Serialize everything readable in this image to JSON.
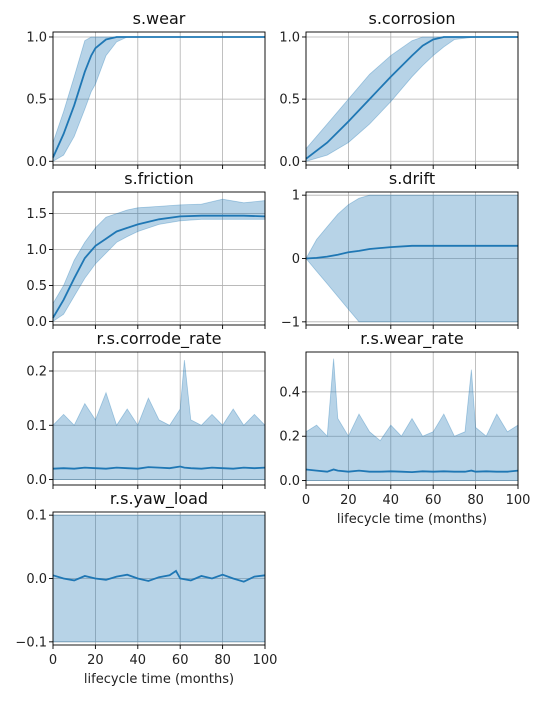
{
  "colors": {
    "line": "#1f77b4",
    "band": "#1f77b4",
    "grid": "#b0b0b0",
    "spine": "#000000"
  },
  "chart_data": [
    {
      "type": "line",
      "title": "s.wear",
      "xlabel": "",
      "xlim": [
        0,
        100
      ],
      "ylim": [
        -0.03,
        1.04
      ],
      "xticks": [
        0,
        20,
        40,
        60,
        80,
        100
      ],
      "xtick_labels_shown": false,
      "yticks": [
        0.0,
        0.5,
        1.0
      ],
      "ytick_labels": [
        "0.0",
        "0.5",
        "1.0"
      ],
      "x": [
        0,
        5,
        10,
        15,
        18,
        20,
        25,
        30,
        35,
        40,
        50,
        60,
        70,
        80,
        90,
        100
      ],
      "mean": [
        0.03,
        0.22,
        0.45,
        0.72,
        0.85,
        0.91,
        0.98,
        1.0,
        1.0,
        1.0,
        1.0,
        1.0,
        1.0,
        1.0,
        1.0,
        1.0
      ],
      "lower": [
        0.0,
        0.05,
        0.2,
        0.42,
        0.56,
        0.62,
        0.85,
        0.96,
        1.0,
        1.0,
        1.0,
        1.0,
        1.0,
        1.0,
        1.0,
        1.0
      ],
      "upper": [
        0.15,
        0.4,
        0.68,
        0.97,
        1.0,
        1.0,
        1.0,
        1.0,
        1.0,
        1.0,
        1.0,
        1.0,
        1.0,
        1.0,
        1.0,
        1.0
      ]
    },
    {
      "type": "line",
      "title": "s.corrosion",
      "xlabel": "",
      "xlim": [
        0,
        100
      ],
      "ylim": [
        -0.03,
        1.04
      ],
      "xticks": [
        0,
        20,
        40,
        60,
        80,
        100
      ],
      "xtick_labels_shown": false,
      "yticks": [
        0.0,
        0.5,
        1.0
      ],
      "ytick_labels": [
        "0.0",
        "0.5",
        "1.0"
      ],
      "x": [
        0,
        10,
        20,
        30,
        40,
        50,
        55,
        60,
        65,
        70,
        80,
        90,
        100
      ],
      "mean": [
        0.02,
        0.15,
        0.32,
        0.5,
        0.68,
        0.85,
        0.93,
        0.98,
        1.0,
        1.0,
        1.0,
        1.0,
        1.0
      ],
      "lower": [
        0.0,
        0.05,
        0.15,
        0.3,
        0.48,
        0.68,
        0.77,
        0.85,
        0.92,
        0.98,
        1.0,
        1.0,
        1.0
      ],
      "upper": [
        0.1,
        0.3,
        0.5,
        0.7,
        0.85,
        0.97,
        1.0,
        1.0,
        1.0,
        1.0,
        1.0,
        1.0,
        1.0
      ]
    },
    {
      "type": "line",
      "title": "s.friction",
      "xlabel": "",
      "xlim": [
        0,
        100
      ],
      "ylim": [
        -0.05,
        1.8
      ],
      "xticks": [
        0,
        20,
        40,
        60,
        80,
        100
      ],
      "xtick_labels_shown": false,
      "yticks": [
        0.0,
        0.5,
        1.0,
        1.5
      ],
      "ytick_labels": [
        "0.0",
        "0.5",
        "1.0",
        "1.5"
      ],
      "x": [
        0,
        5,
        10,
        15,
        20,
        25,
        30,
        35,
        40,
        50,
        60,
        70,
        80,
        90,
        100
      ],
      "mean": [
        0.05,
        0.3,
        0.6,
        0.88,
        1.05,
        1.15,
        1.25,
        1.3,
        1.35,
        1.42,
        1.46,
        1.47,
        1.47,
        1.47,
        1.46
      ],
      "lower": [
        0.0,
        0.1,
        0.35,
        0.6,
        0.8,
        0.95,
        1.1,
        1.18,
        1.25,
        1.35,
        1.4,
        1.42,
        1.42,
        1.42,
        1.42
      ],
      "upper": [
        0.25,
        0.5,
        0.85,
        1.1,
        1.3,
        1.45,
        1.5,
        1.55,
        1.58,
        1.6,
        1.62,
        1.63,
        1.7,
        1.65,
        1.68
      ]
    },
    {
      "type": "line",
      "title": "s.drift",
      "xlabel": "",
      "xlim": [
        0,
        100
      ],
      "ylim": [
        -1.05,
        1.05
      ],
      "xticks": [
        0,
        20,
        40,
        60,
        80,
        100
      ],
      "xtick_labels_shown": false,
      "yticks": [
        -1,
        0,
        1
      ],
      "ytick_labels": [
        "−1",
        "0",
        "1"
      ],
      "x": [
        0,
        5,
        10,
        15,
        20,
        25,
        30,
        40,
        50,
        60,
        70,
        80,
        90,
        100
      ],
      "mean": [
        0.0,
        0.01,
        0.03,
        0.06,
        0.1,
        0.12,
        0.15,
        0.18,
        0.2,
        0.2,
        0.2,
        0.2,
        0.2,
        0.2
      ],
      "lower": [
        0.0,
        -0.2,
        -0.4,
        -0.6,
        -0.8,
        -1.0,
        -1.0,
        -1.0,
        -1.0,
        -1.0,
        -1.0,
        -1.0,
        -1.0,
        -1.0
      ],
      "upper": [
        0.0,
        0.3,
        0.5,
        0.7,
        0.85,
        0.95,
        1.0,
        1.0,
        1.0,
        1.0,
        1.0,
        1.0,
        1.0,
        1.0
      ]
    },
    {
      "type": "line",
      "title": "r.s.corrode_rate",
      "xlabel": "",
      "xlim": [
        0,
        100
      ],
      "ylim": [
        -0.01,
        0.235
      ],
      "xticks": [
        0,
        20,
        40,
        60,
        80,
        100
      ],
      "xtick_labels_shown": false,
      "yticks": [
        0.0,
        0.1,
        0.2
      ],
      "ytick_labels": [
        "0.0",
        "0.1",
        "0.2"
      ],
      "x": [
        0,
        5,
        10,
        15,
        20,
        25,
        30,
        35,
        40,
        45,
        50,
        55,
        60,
        62,
        65,
        70,
        75,
        80,
        85,
        90,
        95,
        100
      ],
      "mean": [
        0.02,
        0.021,
        0.02,
        0.022,
        0.021,
        0.02,
        0.022,
        0.021,
        0.02,
        0.023,
        0.022,
        0.021,
        0.024,
        0.022,
        0.021,
        0.02,
        0.022,
        0.021,
        0.02,
        0.022,
        0.021,
        0.022
      ],
      "lower": [
        0.0,
        0.0,
        0.0,
        0.0,
        0.0,
        0.0,
        0.0,
        0.0,
        0.0,
        0.0,
        0.0,
        0.0,
        0.0,
        0.0,
        0.0,
        0.0,
        0.0,
        0.0,
        0.0,
        0.0,
        0.0,
        0.0
      ],
      "upper": [
        0.1,
        0.12,
        0.1,
        0.14,
        0.11,
        0.16,
        0.1,
        0.13,
        0.1,
        0.15,
        0.11,
        0.1,
        0.13,
        0.22,
        0.11,
        0.1,
        0.12,
        0.1,
        0.13,
        0.1,
        0.12,
        0.1
      ]
    },
    {
      "type": "line",
      "title": "r.s.wear_rate",
      "xlabel": "lifecycle time (months)",
      "xlim": [
        0,
        100
      ],
      "ylim": [
        -0.02,
        0.58
      ],
      "xticks": [
        0,
        20,
        40,
        60,
        80,
        100
      ],
      "xtick_labels_shown": true,
      "xtick_labels": [
        "0",
        "20",
        "40",
        "60",
        "80",
        "100"
      ],
      "yticks": [
        0.0,
        0.2,
        0.4
      ],
      "ytick_labels": [
        "0.0",
        "0.2",
        "0.4"
      ],
      "x": [
        0,
        5,
        10,
        13,
        15,
        20,
        25,
        30,
        35,
        40,
        45,
        50,
        55,
        60,
        65,
        70,
        75,
        78,
        80,
        85,
        90,
        95,
        100
      ],
      "mean": [
        0.05,
        0.045,
        0.04,
        0.05,
        0.045,
        0.04,
        0.045,
        0.04,
        0.04,
        0.042,
        0.04,
        0.038,
        0.042,
        0.04,
        0.042,
        0.04,
        0.04,
        0.045,
        0.04,
        0.042,
        0.04,
        0.04,
        0.045
      ],
      "lower": [
        0.0,
        0.0,
        0.0,
        0.0,
        0.0,
        0.0,
        0.0,
        0.0,
        0.0,
        0.0,
        0.0,
        0.0,
        0.0,
        0.0,
        0.0,
        0.0,
        0.0,
        0.0,
        0.0,
        0.0,
        0.0,
        0.0,
        0.0
      ],
      "upper": [
        0.22,
        0.25,
        0.2,
        0.55,
        0.28,
        0.2,
        0.3,
        0.22,
        0.18,
        0.25,
        0.2,
        0.28,
        0.2,
        0.22,
        0.3,
        0.2,
        0.22,
        0.5,
        0.24,
        0.2,
        0.3,
        0.22,
        0.25
      ]
    },
    {
      "type": "line",
      "title": "r.s.yaw_load",
      "xlabel": "lifecycle time (months)",
      "xlim": [
        0,
        100
      ],
      "ylim": [
        -0.105,
        0.105
      ],
      "xticks": [
        0,
        20,
        40,
        60,
        80,
        100
      ],
      "xtick_labels_shown": true,
      "xtick_labels": [
        "0",
        "20",
        "40",
        "60",
        "80",
        "100"
      ],
      "yticks": [
        -0.1,
        0.0,
        0.1
      ],
      "ytick_labels": [
        "−0.1",
        "0.0",
        "0.1"
      ],
      "x": [
        0,
        5,
        10,
        15,
        20,
        25,
        30,
        35,
        40,
        45,
        50,
        55,
        58,
        60,
        65,
        70,
        75,
        80,
        85,
        90,
        95,
        100
      ],
      "mean": [
        0.005,
        0.0,
        -0.003,
        0.004,
        0.0,
        -0.002,
        0.003,
        0.006,
        0.0,
        -0.004,
        0.002,
        0.005,
        0.012,
        0.0,
        -0.003,
        0.004,
        0.0,
        0.006,
        0.0,
        -0.005,
        0.003,
        0.005
      ],
      "lower": [
        -0.1,
        -0.1,
        -0.1,
        -0.1,
        -0.1,
        -0.1,
        -0.1,
        -0.1,
        -0.1,
        -0.1,
        -0.1,
        -0.1,
        -0.1,
        -0.1,
        -0.1,
        -0.1,
        -0.1,
        -0.1,
        -0.1,
        -0.1,
        -0.1,
        -0.1
      ],
      "upper": [
        0.1,
        0.1,
        0.1,
        0.1,
        0.1,
        0.1,
        0.1,
        0.1,
        0.1,
        0.1,
        0.1,
        0.1,
        0.1,
        0.1,
        0.1,
        0.1,
        0.1,
        0.1,
        0.1,
        0.1,
        0.1,
        0.1
      ]
    }
  ]
}
